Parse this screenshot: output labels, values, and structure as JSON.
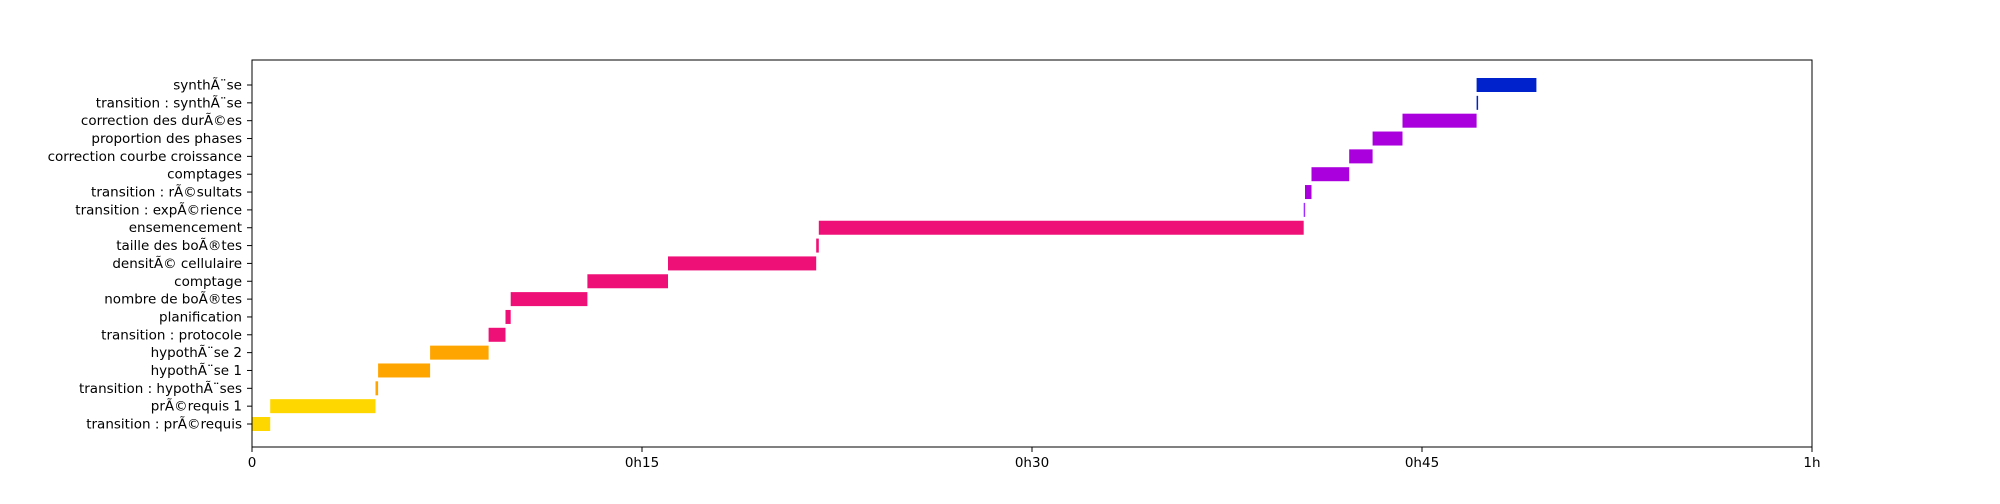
{
  "chart_data": {
    "type": "bar",
    "orientation": "horizontal-gantt",
    "title": "",
    "xlabel": "",
    "ylabel": "",
    "xlim": [
      0,
      60
    ],
    "x_unit": "minutes",
    "x_ticks": [
      {
        "value": 0,
        "label": "0"
      },
      {
        "value": 15,
        "label": "0h15"
      },
      {
        "value": 30,
        "label": "0h30"
      },
      {
        "value": 45,
        "label": "0h45"
      },
      {
        "value": 60,
        "label": "1h"
      }
    ],
    "grid": false,
    "legend": "none",
    "tasks": [
      {
        "label": "transition : prÃ©requis",
        "start": 0.0,
        "end": 0.7,
        "color": "#ffd700"
      },
      {
        "label": "prÃ©requis 1",
        "start": 0.7,
        "end": 4.75,
        "color": "#ffd700"
      },
      {
        "label": "transition : hypothÃ¨ses",
        "start": 4.75,
        "end": 4.85,
        "color": "#ffa500"
      },
      {
        "label": "hypothÃ¨se 1",
        "start": 4.85,
        "end": 6.85,
        "color": "#ffa500"
      },
      {
        "label": "hypothÃ¨se 2",
        "start": 6.85,
        "end": 9.1,
        "color": "#ffa500"
      },
      {
        "label": "transition : protocole",
        "start": 9.1,
        "end": 9.75,
        "color": "#ee1077"
      },
      {
        "label": "planification",
        "start": 9.75,
        "end": 9.95,
        "color": "#ee1077"
      },
      {
        "label": "nombre de boÃ®tes",
        "start": 9.95,
        "end": 12.9,
        "color": "#ee1077"
      },
      {
        "label": "comptage",
        "start": 12.9,
        "end": 16.0,
        "color": "#ee1077"
      },
      {
        "label": "densitÃ© cellulaire",
        "start": 16.0,
        "end": 21.7,
        "color": "#ee1077"
      },
      {
        "label": "taille des boÃ®tes",
        "start": 21.7,
        "end": 21.8,
        "color": "#ee1077"
      },
      {
        "label": "ensemencement",
        "start": 21.8,
        "end": 40.45,
        "color": "#ee1077"
      },
      {
        "label": "transition : expÃ©rience",
        "start": 40.45,
        "end": 40.5,
        "color": "#9b30ff"
      },
      {
        "label": "transition : rÃ©sultats",
        "start": 40.5,
        "end": 40.75,
        "color": "#aa00dd"
      },
      {
        "label": "comptages",
        "start": 40.75,
        "end": 42.2,
        "color": "#aa00dd"
      },
      {
        "label": "correction courbe croissance",
        "start": 42.2,
        "end": 43.1,
        "color": "#aa00dd"
      },
      {
        "label": "proportion des phases",
        "start": 43.1,
        "end": 44.25,
        "color": "#aa00dd"
      },
      {
        "label": "correction des durÃ©es",
        "start": 44.25,
        "end": 47.1,
        "color": "#aa00dd"
      },
      {
        "label": "transition : synthÃ¨se",
        "start": 47.1,
        "end": 47.1,
        "color": "#0022cc"
      },
      {
        "label": "synthÃ¨se",
        "start": 47.1,
        "end": 49.4,
        "color": "#0022cc"
      }
    ]
  }
}
